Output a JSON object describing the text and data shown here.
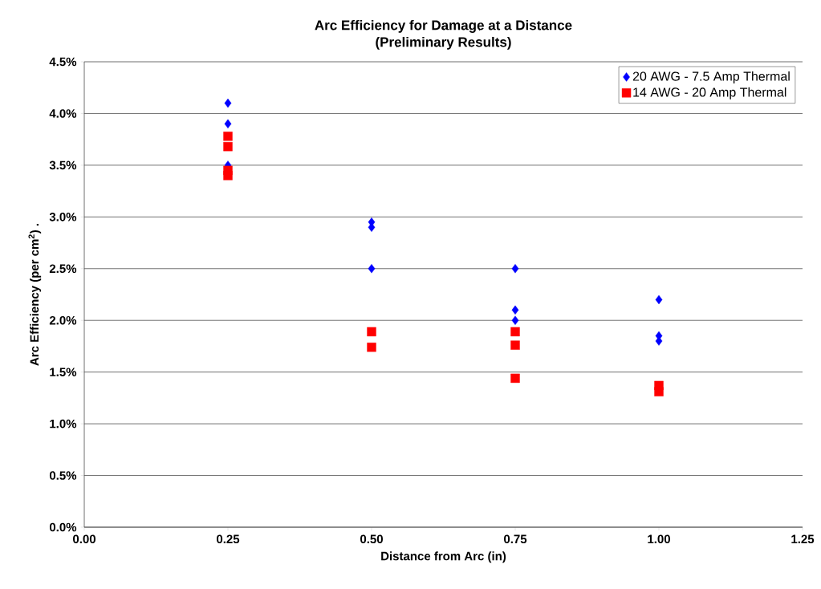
{
  "chart_data": {
    "type": "scatter",
    "title": "Arc Efficiency for Damage at a Distance",
    "subtitle": "(Preliminary Results)",
    "xlabel": "Distance  from Arc (in)",
    "ylabel": "Arc Efficiency (per cm$^{2}$)  .",
    "xlim": [
      0,
      1.25
    ],
    "xticks": [
      {
        "value": 0,
        "label": "0.00"
      },
      {
        "value": 0.25,
        "label": "0.25"
      },
      {
        "value": 0.5,
        "label": "0.50"
      },
      {
        "value": 0.75,
        "label": "0.75"
      },
      {
        "value": 1,
        "label": "1.00"
      },
      {
        "value": 1.25,
        "label": "1.25"
      }
    ],
    "ylim": [
      0,
      4.5
    ],
    "yticks": [
      {
        "value": 0,
        "label": "0.0%"
      },
      {
        "value": 0.5,
        "label": "0.5%"
      },
      {
        "value": 1,
        "label": "1.0%"
      },
      {
        "value": 1.5,
        "label": "1.5%"
      },
      {
        "value": 2,
        "label": "2.0%"
      },
      {
        "value": 2.5,
        "label": "2.5%"
      },
      {
        "value": 3,
        "label": "3.0%"
      },
      {
        "value": 3.5,
        "label": "3.5%"
      },
      {
        "value": 4,
        "label": "4.0%"
      },
      {
        "value": 4.5,
        "label": "4.5%"
      }
    ],
    "grid": "y",
    "legend": "top right",
    "series": [
      {
        "name": "20 AWG - 7.5 Amp Thermal",
        "color": "#0000ff",
        "marker": "diamond",
        "x": [
          0.25,
          0.25,
          0.25,
          0.5,
          0.5,
          0.5,
          0.75,
          0.75,
          0.75,
          1,
          1,
          1
        ],
        "values": [
          4.1,
          3.9,
          3.5,
          2.95,
          2.9,
          2.5,
          2.5,
          2.1,
          2.0,
          2.2,
          1.85,
          1.8
        ]
      },
      {
        "name": "14 AWG - 20 Amp Thermal",
        "color": "#ff0000",
        "marker": "square",
        "x": [
          0.25,
          0.25,
          0.25,
          0.25,
          0.5,
          0.5,
          0.75,
          0.75,
          0.75,
          1,
          1
        ],
        "values": [
          3.78,
          3.68,
          3.45,
          3.4,
          1.89,
          1.74,
          1.89,
          1.76,
          1.44,
          1.37,
          1.31
        ]
      }
    ]
  }
}
